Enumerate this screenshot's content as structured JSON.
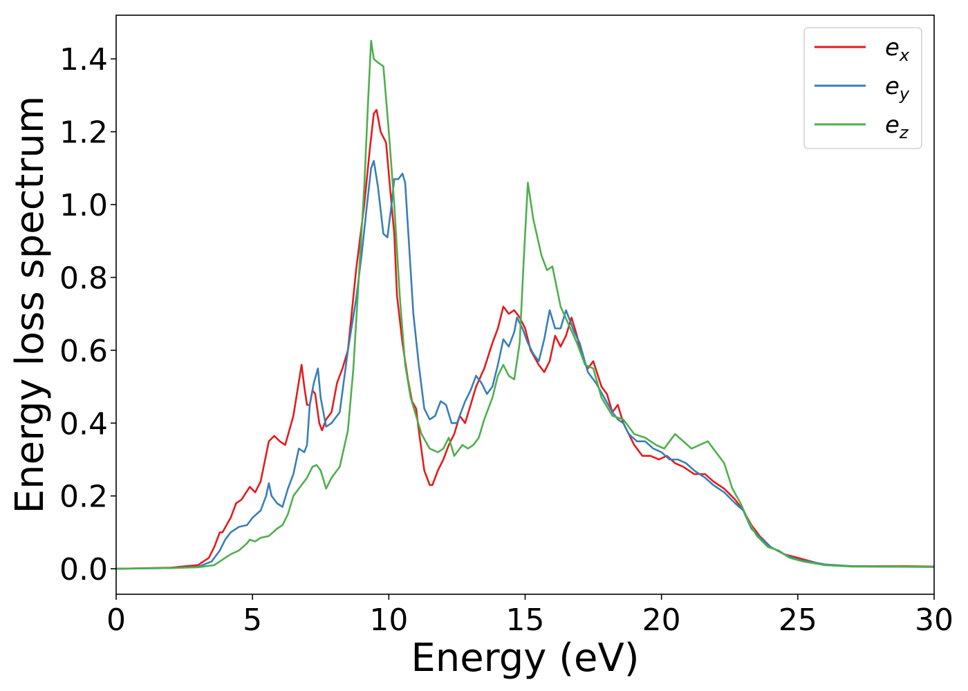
{
  "chart_data": {
    "type": "line",
    "title": "",
    "xlabel": "Energy (eV)",
    "ylabel": "Energy loss spectrum",
    "xlim": [
      0,
      30
    ],
    "ylim": [
      -0.07,
      1.52
    ],
    "xticks": [
      0,
      5,
      10,
      15,
      20,
      25,
      30
    ],
    "xtick_labels": [
      "0",
      "5",
      "10",
      "15",
      "20",
      "25",
      "30"
    ],
    "yticks": [
      0.0,
      0.2,
      0.4,
      0.6,
      0.8,
      1.0,
      1.2,
      1.4
    ],
    "ytick_labels": [
      "0.0",
      "0.2",
      "0.4",
      "0.6",
      "0.8",
      "1.0",
      "1.2",
      "1.4"
    ],
    "grid": false,
    "legend_position": "top-right",
    "series": [
      {
        "name": "e_x",
        "base": "e",
        "sub": "x",
        "color": "#e41a1c",
        "points": [
          [
            0,
            0
          ],
          [
            2,
            0.003
          ],
          [
            3,
            0.01
          ],
          [
            3.4,
            0.03
          ],
          [
            3.6,
            0.06
          ],
          [
            3.8,
            0.1
          ],
          [
            3.9,
            0.1
          ],
          [
            4.2,
            0.14
          ],
          [
            4.4,
            0.18
          ],
          [
            4.6,
            0.19
          ],
          [
            4.9,
            0.225
          ],
          [
            5.1,
            0.21
          ],
          [
            5.3,
            0.24
          ],
          [
            5.6,
            0.35
          ],
          [
            5.8,
            0.365
          ],
          [
            6.0,
            0.35
          ],
          [
            6.2,
            0.34
          ],
          [
            6.5,
            0.42
          ],
          [
            6.8,
            0.56
          ],
          [
            6.9,
            0.5
          ],
          [
            7.0,
            0.45
          ],
          [
            7.1,
            0.45
          ],
          [
            7.2,
            0.49
          ],
          [
            7.3,
            0.48
          ],
          [
            7.45,
            0.4
          ],
          [
            7.55,
            0.38
          ],
          [
            7.7,
            0.41
          ],
          [
            7.9,
            0.43
          ],
          [
            8.1,
            0.51
          ],
          [
            8.3,
            0.55
          ],
          [
            8.5,
            0.6
          ],
          [
            8.8,
            0.82
          ],
          [
            9.1,
            1.0
          ],
          [
            9.3,
            1.15
          ],
          [
            9.45,
            1.25
          ],
          [
            9.55,
            1.26
          ],
          [
            9.7,
            1.2
          ],
          [
            9.9,
            1.17
          ],
          [
            10.1,
            1.0
          ],
          [
            10.2,
            0.92
          ],
          [
            10.3,
            0.75
          ],
          [
            10.5,
            0.62
          ],
          [
            10.7,
            0.52
          ],
          [
            10.85,
            0.46
          ],
          [
            11.0,
            0.44
          ],
          [
            11.1,
            0.38
          ],
          [
            11.3,
            0.27
          ],
          [
            11.5,
            0.23
          ],
          [
            11.6,
            0.23
          ],
          [
            11.8,
            0.27
          ],
          [
            12.0,
            0.3
          ],
          [
            12.2,
            0.34
          ],
          [
            12.4,
            0.37
          ],
          [
            12.6,
            0.42
          ],
          [
            12.8,
            0.4
          ],
          [
            13.0,
            0.45
          ],
          [
            13.2,
            0.5
          ],
          [
            13.5,
            0.55
          ],
          [
            13.8,
            0.62
          ],
          [
            14.0,
            0.66
          ],
          [
            14.2,
            0.72
          ],
          [
            14.4,
            0.7
          ],
          [
            14.6,
            0.71
          ],
          [
            14.8,
            0.69
          ],
          [
            15.0,
            0.66
          ],
          [
            15.2,
            0.6
          ],
          [
            15.5,
            0.56
          ],
          [
            15.7,
            0.54
          ],
          [
            15.9,
            0.57
          ],
          [
            16.1,
            0.64
          ],
          [
            16.3,
            0.61
          ],
          [
            16.5,
            0.64
          ],
          [
            16.7,
            0.69
          ],
          [
            16.9,
            0.64
          ],
          [
            17.1,
            0.58
          ],
          [
            17.3,
            0.55
          ],
          [
            17.5,
            0.57
          ],
          [
            17.8,
            0.5
          ],
          [
            18.0,
            0.48
          ],
          [
            18.2,
            0.43
          ],
          [
            18.4,
            0.45
          ],
          [
            18.6,
            0.4
          ],
          [
            18.8,
            0.37
          ],
          [
            19.0,
            0.34
          ],
          [
            19.3,
            0.31
          ],
          [
            19.6,
            0.31
          ],
          [
            19.9,
            0.3
          ],
          [
            20.2,
            0.31
          ],
          [
            20.5,
            0.29
          ],
          [
            20.8,
            0.28
          ],
          [
            21.2,
            0.26
          ],
          [
            21.6,
            0.26
          ],
          [
            21.9,
            0.24
          ],
          [
            22.3,
            0.22
          ],
          [
            22.7,
            0.19
          ],
          [
            23.0,
            0.16
          ],
          [
            23.3,
            0.12
          ],
          [
            23.6,
            0.09
          ],
          [
            24.0,
            0.06
          ],
          [
            24.5,
            0.04
          ],
          [
            25.0,
            0.03
          ],
          [
            25.5,
            0.02
          ],
          [
            26.0,
            0.01
          ],
          [
            27.0,
            0.007
          ],
          [
            28.0,
            0.007
          ],
          [
            29.0,
            0.007
          ],
          [
            30.0,
            0.006
          ]
        ]
      },
      {
        "name": "e_y",
        "base": "e",
        "sub": "y",
        "color": "#377eb8",
        "points": [
          [
            0,
            0
          ],
          [
            2,
            0.002
          ],
          [
            3,
            0.005
          ],
          [
            3.5,
            0.02
          ],
          [
            3.8,
            0.05
          ],
          [
            4.0,
            0.08
          ],
          [
            4.2,
            0.1
          ],
          [
            4.5,
            0.115
          ],
          [
            4.8,
            0.12
          ],
          [
            5.0,
            0.14
          ],
          [
            5.3,
            0.16
          ],
          [
            5.5,
            0.2
          ],
          [
            5.6,
            0.235
          ],
          [
            5.7,
            0.2
          ],
          [
            5.9,
            0.18
          ],
          [
            6.1,
            0.17
          ],
          [
            6.3,
            0.22
          ],
          [
            6.5,
            0.26
          ],
          [
            6.7,
            0.33
          ],
          [
            6.9,
            0.32
          ],
          [
            7.0,
            0.34
          ],
          [
            7.1,
            0.45
          ],
          [
            7.25,
            0.51
          ],
          [
            7.4,
            0.55
          ],
          [
            7.5,
            0.47
          ],
          [
            7.7,
            0.39
          ],
          [
            7.9,
            0.4
          ],
          [
            8.2,
            0.43
          ],
          [
            8.5,
            0.6
          ],
          [
            8.8,
            0.74
          ],
          [
            9.0,
            0.86
          ],
          [
            9.2,
            1.0
          ],
          [
            9.35,
            1.1
          ],
          [
            9.45,
            1.12
          ],
          [
            9.6,
            1.05
          ],
          [
            9.8,
            0.92
          ],
          [
            9.95,
            0.91
          ],
          [
            10.1,
            1.0
          ],
          [
            10.2,
            1.07
          ],
          [
            10.35,
            1.07
          ],
          [
            10.5,
            1.085
          ],
          [
            10.6,
            1.06
          ],
          [
            10.8,
            0.82
          ],
          [
            10.9,
            0.7
          ],
          [
            11.1,
            0.56
          ],
          [
            11.3,
            0.44
          ],
          [
            11.5,
            0.41
          ],
          [
            11.7,
            0.42
          ],
          [
            11.9,
            0.46
          ],
          [
            12.1,
            0.45
          ],
          [
            12.3,
            0.4
          ],
          [
            12.5,
            0.4
          ],
          [
            12.8,
            0.46
          ],
          [
            13.0,
            0.49
          ],
          [
            13.2,
            0.53
          ],
          [
            13.4,
            0.51
          ],
          [
            13.6,
            0.48
          ],
          [
            13.8,
            0.5
          ],
          [
            14.0,
            0.56
          ],
          [
            14.2,
            0.63
          ],
          [
            14.4,
            0.61
          ],
          [
            14.6,
            0.65
          ],
          [
            14.7,
            0.69
          ],
          [
            14.9,
            0.66
          ],
          [
            15.1,
            0.62
          ],
          [
            15.3,
            0.59
          ],
          [
            15.5,
            0.57
          ],
          [
            15.7,
            0.63
          ],
          [
            15.9,
            0.71
          ],
          [
            16.1,
            0.66
          ],
          [
            16.3,
            0.66
          ],
          [
            16.5,
            0.71
          ],
          [
            16.8,
            0.65
          ],
          [
            17.0,
            0.62
          ],
          [
            17.3,
            0.54
          ],
          [
            17.6,
            0.51
          ],
          [
            17.9,
            0.47
          ],
          [
            18.2,
            0.43
          ],
          [
            18.4,
            0.41
          ],
          [
            18.6,
            0.4
          ],
          [
            18.8,
            0.37
          ],
          [
            19.1,
            0.35
          ],
          [
            19.4,
            0.35
          ],
          [
            19.7,
            0.33
          ],
          [
            20.0,
            0.32
          ],
          [
            20.3,
            0.3
          ],
          [
            20.6,
            0.3
          ],
          [
            20.9,
            0.29
          ],
          [
            21.2,
            0.27
          ],
          [
            21.6,
            0.25
          ],
          [
            21.9,
            0.23
          ],
          [
            22.3,
            0.21
          ],
          [
            22.7,
            0.18
          ],
          [
            23.0,
            0.16
          ],
          [
            23.3,
            0.11
          ],
          [
            23.7,
            0.08
          ],
          [
            24.0,
            0.06
          ],
          [
            24.5,
            0.04
          ],
          [
            25.0,
            0.025
          ],
          [
            26.0,
            0.012
          ],
          [
            27.0,
            0.007
          ],
          [
            28.0,
            0.006
          ],
          [
            30.0,
            0.005
          ]
        ]
      },
      {
        "name": "e_z",
        "base": "e",
        "sub": "z",
        "color": "#4daf4a",
        "points": [
          [
            0,
            0
          ],
          [
            2,
            0.002
          ],
          [
            3,
            0.004
          ],
          [
            3.6,
            0.01
          ],
          [
            3.9,
            0.025
          ],
          [
            4.2,
            0.04
          ],
          [
            4.5,
            0.05
          ],
          [
            4.8,
            0.07
          ],
          [
            4.9,
            0.08
          ],
          [
            5.1,
            0.075
          ],
          [
            5.3,
            0.085
          ],
          [
            5.6,
            0.09
          ],
          [
            5.9,
            0.11
          ],
          [
            6.1,
            0.12
          ],
          [
            6.3,
            0.15
          ],
          [
            6.5,
            0.2
          ],
          [
            6.8,
            0.23
          ],
          [
            7.0,
            0.25
          ],
          [
            7.2,
            0.28
          ],
          [
            7.35,
            0.285
          ],
          [
            7.5,
            0.27
          ],
          [
            7.7,
            0.22
          ],
          [
            7.9,
            0.25
          ],
          [
            8.2,
            0.28
          ],
          [
            8.5,
            0.38
          ],
          [
            8.7,
            0.55
          ],
          [
            8.9,
            0.8
          ],
          [
            9.1,
            1.05
          ],
          [
            9.25,
            1.3
          ],
          [
            9.35,
            1.45
          ],
          [
            9.45,
            1.4
          ],
          [
            9.6,
            1.39
          ],
          [
            9.8,
            1.38
          ],
          [
            10.0,
            1.2
          ],
          [
            10.2,
            1.0
          ],
          [
            10.4,
            0.75
          ],
          [
            10.6,
            0.56
          ],
          [
            10.8,
            0.47
          ],
          [
            11.0,
            0.42
          ],
          [
            11.2,
            0.37
          ],
          [
            11.5,
            0.33
          ],
          [
            11.8,
            0.32
          ],
          [
            12.0,
            0.33
          ],
          [
            12.2,
            0.36
          ],
          [
            12.4,
            0.31
          ],
          [
            12.7,
            0.34
          ],
          [
            12.9,
            0.33
          ],
          [
            13.1,
            0.34
          ],
          [
            13.3,
            0.36
          ],
          [
            13.5,
            0.41
          ],
          [
            13.8,
            0.47
          ],
          [
            14.0,
            0.53
          ],
          [
            14.2,
            0.56
          ],
          [
            14.4,
            0.53
          ],
          [
            14.6,
            0.52
          ],
          [
            14.8,
            0.62
          ],
          [
            14.95,
            0.85
          ],
          [
            15.1,
            1.06
          ],
          [
            15.3,
            0.96
          ],
          [
            15.6,
            0.86
          ],
          [
            15.8,
            0.82
          ],
          [
            16.0,
            0.83
          ],
          [
            16.3,
            0.72
          ],
          [
            16.6,
            0.67
          ],
          [
            16.9,
            0.62
          ],
          [
            17.2,
            0.56
          ],
          [
            17.5,
            0.55
          ],
          [
            17.8,
            0.47
          ],
          [
            18.2,
            0.42
          ],
          [
            18.6,
            0.41
          ],
          [
            19.0,
            0.37
          ],
          [
            19.4,
            0.36
          ],
          [
            19.8,
            0.34
          ],
          [
            20.1,
            0.33
          ],
          [
            20.5,
            0.37
          ],
          [
            20.8,
            0.35
          ],
          [
            21.1,
            0.33
          ],
          [
            21.4,
            0.34
          ],
          [
            21.7,
            0.35
          ],
          [
            22.0,
            0.32
          ],
          [
            22.3,
            0.29
          ],
          [
            22.6,
            0.22
          ],
          [
            22.9,
            0.18
          ],
          [
            23.2,
            0.13
          ],
          [
            23.5,
            0.09
          ],
          [
            23.9,
            0.06
          ],
          [
            24.3,
            0.05
          ],
          [
            24.7,
            0.03
          ],
          [
            25.2,
            0.02
          ],
          [
            26.0,
            0.01
          ],
          [
            27.0,
            0.006
          ],
          [
            30.0,
            0.005
          ]
        ]
      }
    ]
  }
}
